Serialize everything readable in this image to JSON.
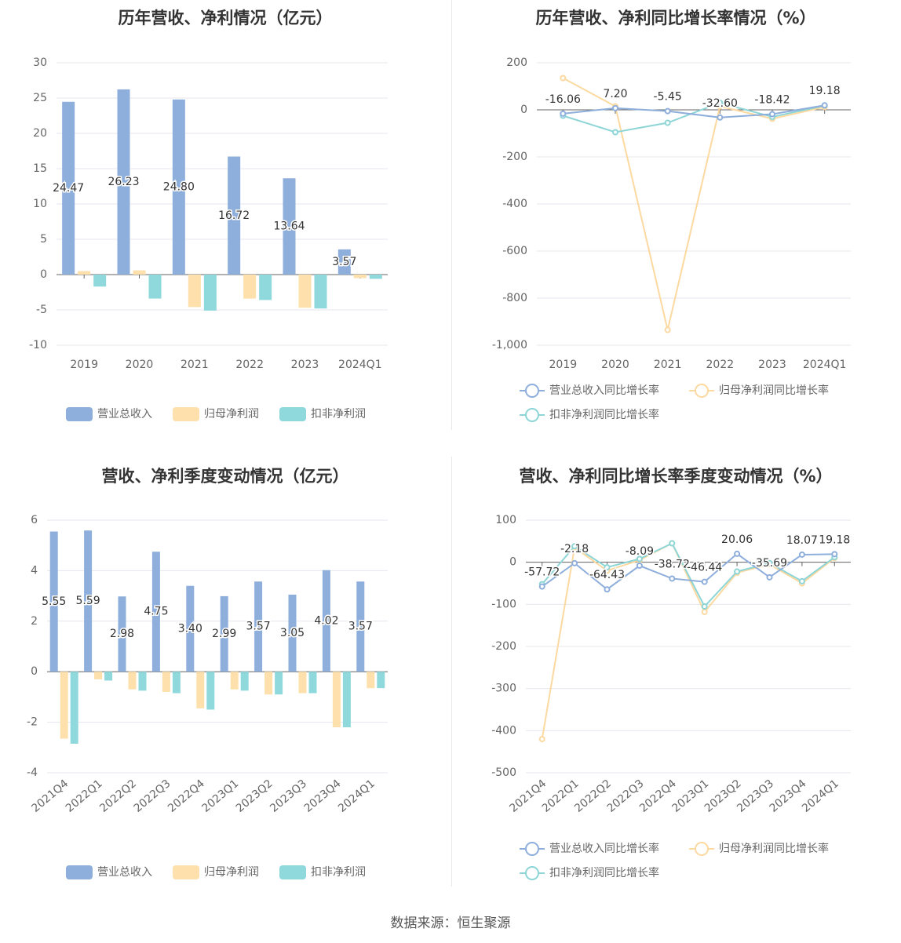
{
  "footer": {
    "source": "数据来源：恒生聚源"
  },
  "colors": {
    "revenue": "#8eaedc",
    "net_profit": "#fde0ab",
    "deducted_profit": "#8fd8dc",
    "revenue_line": "#8eaedc",
    "net_profit_line": "#fcd9a0",
    "deducted_line": "#8dd5d6"
  },
  "chart_data": [
    {
      "id": "annual-amounts",
      "type": "bar",
      "title": "历年营收、净利情况（亿元）",
      "categories": [
        "2019",
        "2020",
        "2021",
        "2022",
        "2023",
        "2024Q1"
      ],
      "series": [
        {
          "name": "营业总收入",
          "values": [
            24.47,
            26.23,
            24.8,
            16.72,
            13.64,
            3.57
          ],
          "labels": [
            "24.47",
            "26.23",
            "24.80",
            "16.72",
            "13.64",
            "3.57"
          ]
        },
        {
          "name": "归母净利润",
          "values": [
            0.5,
            0.6,
            -4.6,
            -3.4,
            -4.7,
            -0.5
          ]
        },
        {
          "name": "扣非净利润",
          "values": [
            -1.7,
            -3.4,
            -5.1,
            -3.6,
            -4.8,
            -0.6
          ]
        }
      ],
      "ylim": [
        -10,
        30
      ],
      "yticks": [
        "-10",
        "-5",
        "0",
        "5",
        "10",
        "15",
        "20",
        "25",
        "30"
      ],
      "legend": "bottom"
    },
    {
      "id": "annual-growth",
      "type": "line",
      "title": "历年营收、净利同比增长率情况（%）",
      "categories": [
        "2019",
        "2020",
        "2021",
        "2022",
        "2023",
        "2024Q1"
      ],
      "series": [
        {
          "name": "营业总收入同比增长率",
          "values": [
            -16.06,
            7.2,
            -5.45,
            -32.6,
            -18.42,
            19.18
          ],
          "labels": [
            "-16.06",
            "7.20",
            "-5.45",
            "-32.60",
            "-18.42",
            "19.18"
          ]
        },
        {
          "name": "归母净利润同比增长率",
          "values": [
            135,
            15,
            -935,
            15,
            -38,
            12
          ]
        },
        {
          "name": "扣非净利润同比增长率",
          "values": [
            -25,
            -95,
            -55,
            30,
            -30,
            18
          ]
        }
      ],
      "ylim": [
        -1000,
        200
      ],
      "yticks": [
        "-1,000",
        "-800",
        "-600",
        "-400",
        "-200",
        "0",
        "200"
      ],
      "legend": "bottom"
    },
    {
      "id": "quarterly-amounts",
      "type": "bar",
      "title": "营收、净利季度变动情况（亿元）",
      "categories": [
        "2021Q4",
        "2022Q1",
        "2022Q2",
        "2022Q3",
        "2022Q4",
        "2023Q1",
        "2023Q2",
        "2023Q3",
        "2023Q4",
        "2024Q1"
      ],
      "series": [
        {
          "name": "营业总收入",
          "values": [
            5.55,
            5.59,
            2.98,
            4.75,
            3.4,
            2.99,
            3.57,
            3.05,
            4.02,
            3.57
          ],
          "labels": [
            "5.55",
            "5.59",
            "2.98",
            "4.75",
            "3.40",
            "2.99",
            "3.57",
            "3.05",
            "4.02",
            "3.57"
          ]
        },
        {
          "name": "归母净利润",
          "values": [
            -2.65,
            -0.3,
            -0.7,
            -0.8,
            -1.45,
            -0.7,
            -0.9,
            -0.85,
            -2.2,
            -0.65
          ]
        },
        {
          "name": "扣非净利润",
          "values": [
            -2.85,
            -0.35,
            -0.75,
            -0.85,
            -1.5,
            -0.75,
            -0.9,
            -0.85,
            -2.2,
            -0.65
          ]
        }
      ],
      "ylim": [
        -4,
        6
      ],
      "yticks": [
        "-4",
        "-2",
        "0",
        "2",
        "4",
        "6"
      ],
      "legend": "bottom"
    },
    {
      "id": "quarterly-growth",
      "type": "line",
      "title": "营收、净利同比增长率季度变动情况（%）",
      "categories": [
        "2021Q4",
        "2022Q1",
        "2022Q2",
        "2022Q3",
        "2022Q4",
        "2023Q1",
        "2023Q2",
        "2023Q3",
        "2023Q4",
        "2024Q1"
      ],
      "series": [
        {
          "name": "营业总收入同比增长率",
          "values": [
            -57.72,
            -2.18,
            -64.43,
            -8.09,
            -38.72,
            -46.44,
            20.06,
            -35.69,
            18.07,
            19.18
          ],
          "labels": [
            "-57.72",
            "-2.18",
            "-64.43",
            "-8.09",
            "-38.72",
            "-46.44",
            "20.06",
            "-35.69",
            "18.07",
            "19.18"
          ]
        },
        {
          "name": "归母净利润同比增长率",
          "values": [
            -420,
            35,
            -20,
            5,
            45,
            -118,
            -25,
            -5,
            -50,
            10
          ]
        },
        {
          "name": "扣非净利润同比增长率",
          "values": [
            -52,
            38,
            -12,
            8,
            45,
            -105,
            -22,
            -2,
            -45,
            12
          ]
        }
      ],
      "ylim": [
        -500,
        100
      ],
      "yticks": [
        "-500",
        "-400",
        "-300",
        "-200",
        "-100",
        "0",
        "100"
      ],
      "legend": "bottom"
    }
  ]
}
